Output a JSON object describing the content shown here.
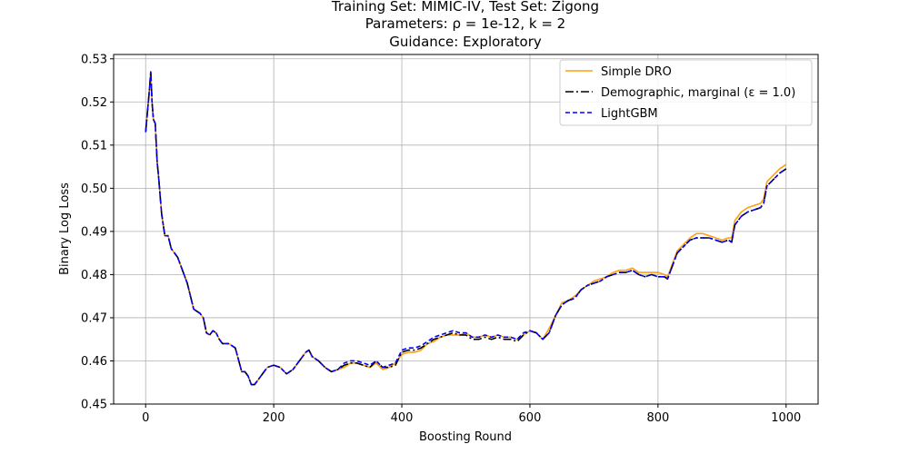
{
  "chart_data": {
    "type": "line",
    "title": [
      "Training Set: MIMIC-IV, Test Set: Zigong",
      "Parameters: ρ = 1e-12, k = 2",
      "Guidance: Exploratory"
    ],
    "xlabel": "Boosting Round",
    "ylabel": "Binary Log Loss",
    "xlim": [
      -50,
      1050
    ],
    "ylim": [
      0.45,
      0.531
    ],
    "xticks": [
      0,
      200,
      400,
      600,
      800,
      1000
    ],
    "yticks": [
      0.45,
      0.46,
      0.47,
      0.48,
      0.49,
      0.5,
      0.51,
      0.52,
      0.53
    ],
    "ytick_labels": [
      "0.45",
      "0.46",
      "0.47",
      "0.48",
      "0.49",
      "0.50",
      "0.51",
      "0.52",
      "0.53"
    ],
    "grid": true,
    "legend_position": "top-right",
    "legend": [
      {
        "label": "Simple DRO",
        "color": "#ff9f0e",
        "style": "solid"
      },
      {
        "label": "Demographic, marginal (ε = 1.0)",
        "color": "#000000",
        "style": "dashdot"
      },
      {
        "label": "LightGBM",
        "color": "#0000ff",
        "style": "dashed"
      }
    ],
    "x": [
      0,
      3,
      6,
      8,
      10,
      12,
      15,
      18,
      20,
      25,
      30,
      35,
      40,
      45,
      50,
      55,
      60,
      65,
      70,
      75,
      80,
      85,
      90,
      95,
      100,
      105,
      110,
      115,
      120,
      130,
      140,
      150,
      155,
      160,
      165,
      170,
      180,
      190,
      200,
      210,
      220,
      230,
      240,
      250,
      255,
      260,
      270,
      280,
      290,
      300,
      310,
      320,
      330,
      340,
      350,
      360,
      370,
      380,
      390,
      400,
      410,
      420,
      430,
      440,
      450,
      460,
      470,
      480,
      490,
      500,
      510,
      520,
      530,
      540,
      550,
      560,
      570,
      580,
      590,
      600,
      610,
      620,
      630,
      640,
      650,
      660,
      670,
      680,
      690,
      700,
      710,
      720,
      730,
      740,
      750,
      760,
      770,
      780,
      790,
      800,
      810,
      815,
      820,
      830,
      840,
      850,
      860,
      870,
      880,
      890,
      900,
      910,
      915,
      920,
      930,
      940,
      950,
      960,
      965,
      970,
      980,
      990,
      1000
    ],
    "series": [
      {
        "name": "Simple DRO",
        "values": [
          0.513,
          0.518,
          0.523,
          0.527,
          0.52,
          0.516,
          0.515,
          0.506,
          0.503,
          0.494,
          0.489,
          0.489,
          0.486,
          0.485,
          0.484,
          0.482,
          0.48,
          0.478,
          0.475,
          0.472,
          0.4715,
          0.471,
          0.47,
          0.4665,
          0.466,
          0.467,
          0.4665,
          0.465,
          0.464,
          0.464,
          0.463,
          0.4575,
          0.4575,
          0.4565,
          0.4545,
          0.4545,
          0.4565,
          0.4585,
          0.459,
          0.4585,
          0.457,
          0.458,
          0.46,
          0.462,
          0.4625,
          0.461,
          0.46,
          0.4585,
          0.4575,
          0.458,
          0.4585,
          0.4595,
          0.4595,
          0.459,
          0.4585,
          0.4595,
          0.458,
          0.4585,
          0.4595,
          0.4615,
          0.462,
          0.462,
          0.4625,
          0.464,
          0.4645,
          0.4655,
          0.466,
          0.466,
          0.466,
          0.4665,
          0.4655,
          0.4655,
          0.466,
          0.4655,
          0.466,
          0.4655,
          0.4655,
          0.465,
          0.466,
          0.467,
          0.4665,
          0.465,
          0.4675,
          0.4705,
          0.4735,
          0.474,
          0.475,
          0.4765,
          0.4775,
          0.4785,
          0.479,
          0.4795,
          0.4805,
          0.481,
          0.481,
          0.4815,
          0.4805,
          0.4805,
          0.4805,
          0.4805,
          0.48,
          0.4795,
          0.4815,
          0.4855,
          0.487,
          0.4885,
          0.4895,
          0.4895,
          0.489,
          0.4885,
          0.488,
          0.4885,
          0.4885,
          0.4925,
          0.4945,
          0.4955,
          0.496,
          0.4965,
          0.4975,
          0.5015,
          0.503,
          0.5045,
          0.5055
        ]
      },
      {
        "name": "Demographic, marginal (ε = 1.0)",
        "values": [
          0.513,
          0.518,
          0.523,
          0.527,
          0.52,
          0.516,
          0.515,
          0.506,
          0.503,
          0.494,
          0.489,
          0.489,
          0.486,
          0.485,
          0.484,
          0.482,
          0.48,
          0.478,
          0.475,
          0.472,
          0.4715,
          0.471,
          0.47,
          0.4665,
          0.466,
          0.467,
          0.4665,
          0.465,
          0.464,
          0.464,
          0.463,
          0.4575,
          0.4575,
          0.4565,
          0.4545,
          0.4545,
          0.4565,
          0.4585,
          0.459,
          0.4585,
          0.457,
          0.458,
          0.46,
          0.462,
          0.4625,
          0.461,
          0.46,
          0.4585,
          0.4575,
          0.458,
          0.459,
          0.4595,
          0.4595,
          0.459,
          0.4585,
          0.46,
          0.4585,
          0.4585,
          0.459,
          0.462,
          0.4625,
          0.4625,
          0.463,
          0.464,
          0.465,
          0.4655,
          0.466,
          0.4665,
          0.466,
          0.466,
          0.465,
          0.465,
          0.4655,
          0.465,
          0.4655,
          0.465,
          0.465,
          0.4645,
          0.466,
          0.467,
          0.4665,
          0.465,
          0.4665,
          0.4705,
          0.473,
          0.474,
          0.4745,
          0.4765,
          0.4775,
          0.478,
          0.4785,
          0.4795,
          0.48,
          0.4805,
          0.4805,
          0.481,
          0.48,
          0.4795,
          0.48,
          0.4795,
          0.4795,
          0.479,
          0.481,
          0.485,
          0.4865,
          0.488,
          0.4885,
          0.4885,
          0.4885,
          0.488,
          0.4875,
          0.488,
          0.4875,
          0.4915,
          0.4935,
          0.4945,
          0.495,
          0.4955,
          0.4965,
          0.5005,
          0.502,
          0.5035,
          0.5045
        ]
      },
      {
        "name": "LightGBM",
        "values": [
          0.513,
          0.518,
          0.523,
          0.527,
          0.52,
          0.516,
          0.515,
          0.506,
          0.503,
          0.494,
          0.489,
          0.489,
          0.486,
          0.485,
          0.484,
          0.482,
          0.48,
          0.478,
          0.475,
          0.472,
          0.4715,
          0.471,
          0.47,
          0.4665,
          0.466,
          0.467,
          0.4665,
          0.465,
          0.464,
          0.464,
          0.463,
          0.4575,
          0.4575,
          0.4565,
          0.4545,
          0.4545,
          0.4565,
          0.4585,
          0.459,
          0.4585,
          0.457,
          0.458,
          0.46,
          0.462,
          0.4625,
          0.461,
          0.46,
          0.4585,
          0.4575,
          0.458,
          0.4595,
          0.46,
          0.46,
          0.4595,
          0.459,
          0.46,
          0.4585,
          0.459,
          0.4595,
          0.4625,
          0.463,
          0.463,
          0.4635,
          0.4645,
          0.4655,
          0.466,
          0.4665,
          0.467,
          0.4665,
          0.4665,
          0.4655,
          0.4655,
          0.466,
          0.4655,
          0.466,
          0.4655,
          0.4655,
          0.465,
          0.4665,
          0.467,
          0.4665,
          0.465,
          0.4665,
          0.4705,
          0.473,
          0.474,
          0.4745,
          0.4765,
          0.4775,
          0.478,
          0.4785,
          0.4795,
          0.48,
          0.4805,
          0.4805,
          0.481,
          0.48,
          0.4795,
          0.48,
          0.4795,
          0.4795,
          0.479,
          0.481,
          0.485,
          0.4865,
          0.488,
          0.4885,
          0.4885,
          0.4885,
          0.488,
          0.4875,
          0.488,
          0.4875,
          0.4915,
          0.4935,
          0.4945,
          0.495,
          0.4955,
          0.4965,
          0.5005,
          0.502,
          0.5035,
          0.5045
        ]
      }
    ]
  }
}
